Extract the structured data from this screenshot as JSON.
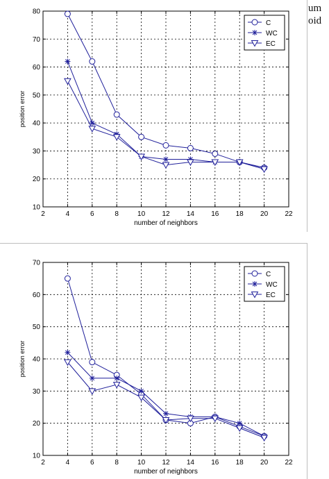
{
  "edge_text": [
    "um",
    "oid"
  ],
  "chart_data": [
    {
      "type": "line",
      "xlabel": "number of neighbors",
      "ylabel": "position error",
      "xlim": [
        2,
        22
      ],
      "ylim": [
        10,
        80
      ],
      "xticks": [
        2,
        4,
        6,
        8,
        10,
        12,
        14,
        16,
        18,
        20,
        22
      ],
      "yticks": [
        10,
        20,
        30,
        40,
        50,
        60,
        70,
        80
      ],
      "grid": true,
      "legend_position": "top-right",
      "x": [
        4,
        6,
        8,
        10,
        12,
        14,
        16,
        18,
        20
      ],
      "series": [
        {
          "name": "C",
          "marker": "circle",
          "values": [
            79,
            62,
            43,
            35,
            32,
            31,
            29,
            26,
            24
          ]
        },
        {
          "name": "WC",
          "marker": "star",
          "values": [
            62,
            40,
            36,
            28,
            27,
            27,
            26,
            26,
            24
          ]
        },
        {
          "name": "EC",
          "marker": "triangle",
          "values": [
            55,
            38,
            35,
            28,
            25,
            26,
            26,
            26,
            23.5
          ]
        }
      ]
    },
    {
      "type": "line",
      "xlabel": "number of neighbors",
      "ylabel": "position error",
      "xlim": [
        2,
        22
      ],
      "ylim": [
        10,
        70
      ],
      "xticks": [
        2,
        4,
        6,
        8,
        10,
        12,
        14,
        16,
        18,
        20,
        22
      ],
      "yticks": [
        10,
        20,
        30,
        40,
        50,
        60,
        70
      ],
      "grid": true,
      "legend_position": "top-right",
      "x": [
        4,
        6,
        8,
        10,
        12,
        14,
        16,
        18,
        20
      ],
      "series": [
        {
          "name": "C",
          "marker": "circle",
          "values": [
            65,
            39,
            35,
            29,
            21,
            20,
            22,
            19,
            16
          ]
        },
        {
          "name": "WC",
          "marker": "star",
          "values": [
            42,
            34,
            34,
            30,
            23,
            22,
            22,
            20,
            16
          ]
        },
        {
          "name": "EC",
          "marker": "triangle",
          "values": [
            39,
            30,
            32,
            28,
            21,
            21.5,
            21.5,
            18.5,
            15.5
          ]
        }
      ]
    }
  ]
}
